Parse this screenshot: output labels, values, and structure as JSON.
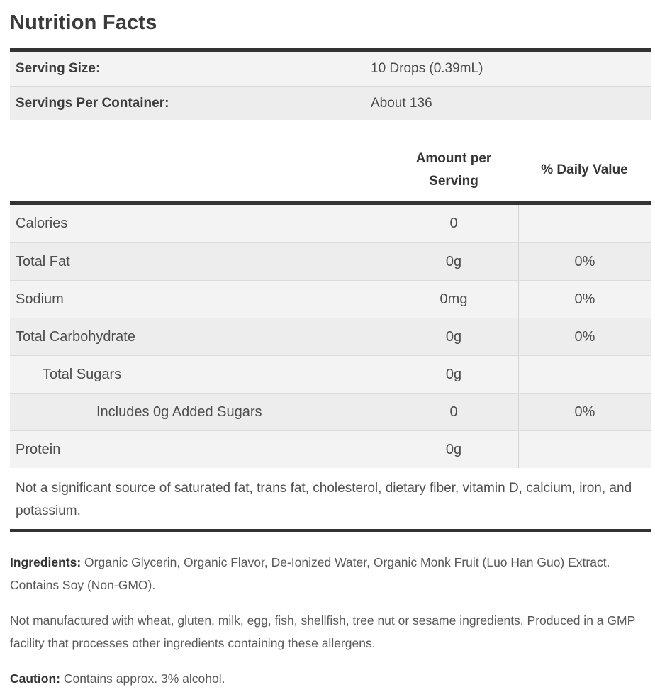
{
  "title": "Nutrition Facts",
  "serving_info": {
    "rows": [
      {
        "label": "Serving Size:",
        "value": "10 Drops (0.39mL)"
      },
      {
        "label": "Servings Per Container:",
        "value": "About 136"
      }
    ]
  },
  "nutrition_table": {
    "headers": {
      "amount": "Amount per Serving",
      "daily_value": "% Daily Value"
    },
    "rows": [
      {
        "label": "Calories",
        "amount": "0",
        "daily_value": "",
        "indent": 0
      },
      {
        "label": "Total Fat",
        "amount": "0g",
        "daily_value": "0%",
        "indent": 0
      },
      {
        "label": "Sodium",
        "amount": "0mg",
        "daily_value": "0%",
        "indent": 0
      },
      {
        "label": "Total Carbohydrate",
        "amount": "0g",
        "daily_value": "0%",
        "indent": 0
      },
      {
        "label": "Total Sugars",
        "amount": "0g",
        "daily_value": "",
        "indent": 1
      },
      {
        "label": "Includes 0g Added Sugars",
        "amount": "0",
        "daily_value": "0%",
        "indent": 2
      },
      {
        "label": "Protein",
        "amount": "0g",
        "daily_value": "",
        "indent": 0
      }
    ],
    "footnote": "Not a significant source of saturated fat, trans fat, cholesterol, dietary fiber, vitamin D, calcium, iron, and potassium."
  },
  "details": {
    "ingredients_label": "Ingredients:",
    "ingredients_text": " Organic Glycerin, Organic Flavor, De-Ionized Water, Organic Monk Fruit (Luo Han Guo) Extract. Contains Soy (Non-GMO).",
    "allergen_text": "Not manufactured with wheat, gluten, milk, egg, fish, shellfish, tree nut or sesame ingredients. Produced in a GMP facility that processes other ingredients containing these allergens.",
    "caution_label": "Caution:",
    "caution_text": " Contains approx. 3% alcohol."
  },
  "colors": {
    "divider_bar": "#333333",
    "row_light": "#f3f3f3",
    "row_dark": "#ededed",
    "text_primary": "#3b3b3b",
    "text_body": "#595959"
  }
}
